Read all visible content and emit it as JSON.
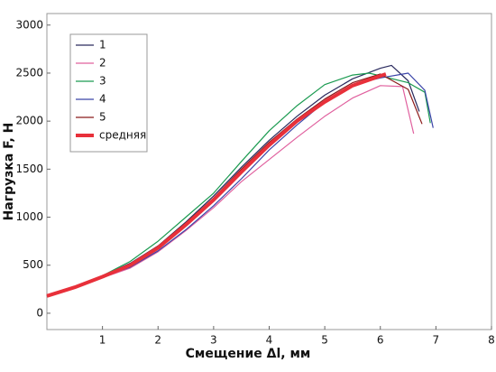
{
  "chart_data": {
    "type": "line",
    "x_label": "Смещение Δl, мм",
    "y_label": "Нагрузка F, Н",
    "xlim": [
      0,
      8
    ],
    "xticks": [
      1,
      2,
      3,
      4,
      5,
      6,
      7,
      8
    ],
    "ylim": [
      -170,
      3120
    ],
    "yticks": [
      0,
      500,
      1000,
      1500,
      2000,
      2500,
      3000
    ],
    "series": [
      {
        "name": "1",
        "color": "#2a2a5e",
        "width": 1.2,
        "x": [
          0,
          0.5,
          1,
          1.5,
          2,
          2.5,
          3,
          3.5,
          4,
          4.5,
          5,
          5.5,
          6,
          6.2,
          6.5,
          6.7
        ],
        "values": [
          180,
          270,
          390,
          520,
          700,
          950,
          1220,
          1520,
          1800,
          2050,
          2270,
          2440,
          2550,
          2580,
          2420,
          2100
        ]
      },
      {
        "name": "2",
        "color": "#e0609e",
        "width": 1.2,
        "x": [
          0,
          0.5,
          1,
          1.5,
          2,
          2.5,
          3,
          3.5,
          4,
          4.5,
          5,
          5.5,
          6,
          6.4,
          6.6
        ],
        "values": [
          180,
          270,
          370,
          470,
          640,
          860,
          1100,
          1370,
          1600,
          1830,
          2050,
          2240,
          2370,
          2360,
          1870
        ]
      },
      {
        "name": "3",
        "color": "#1a9a50",
        "width": 1.2,
        "x": [
          0,
          0.5,
          1,
          1.5,
          2,
          2.5,
          3,
          3.5,
          4,
          4.5,
          5,
          5.5,
          5.8,
          6.5,
          6.8,
          6.9
        ],
        "values": [
          180,
          280,
          390,
          540,
          750,
          1000,
          1250,
          1580,
          1900,
          2160,
          2380,
          2480,
          2500,
          2400,
          2300,
          1980
        ]
      },
      {
        "name": "4",
        "color": "#3a44a8",
        "width": 1.2,
        "x": [
          0,
          0.5,
          1,
          1.5,
          2,
          2.5,
          3,
          3.5,
          4,
          4.5,
          5,
          5.5,
          6,
          6.5,
          6.8,
          6.95
        ],
        "values": [
          180,
          270,
          380,
          480,
          650,
          870,
          1120,
          1400,
          1700,
          1960,
          2200,
          2380,
          2450,
          2500,
          2320,
          1930
        ]
      },
      {
        "name": "5",
        "color": "#8b1a1a",
        "width": 1.2,
        "x": [
          0,
          0.5,
          1,
          1.5,
          2,
          2.5,
          3,
          3.5,
          4,
          4.5,
          5,
          5.5,
          6,
          6.5,
          6.75
        ],
        "values": [
          180,
          275,
          385,
          510,
          700,
          940,
          1200,
          1500,
          1780,
          2020,
          2230,
          2400,
          2490,
          2330,
          1970
        ]
      },
      {
        "name": "средняя",
        "color": "#e8303a",
        "width": 4,
        "x": [
          0,
          0.5,
          1,
          1.5,
          2,
          2.5,
          3,
          3.5,
          4,
          4.5,
          5,
          5.5,
          6,
          6.1
        ],
        "values": [
          180,
          270,
          380,
          500,
          680,
          920,
          1180,
          1470,
          1750,
          2000,
          2200,
          2370,
          2470,
          2490
        ]
      }
    ]
  }
}
